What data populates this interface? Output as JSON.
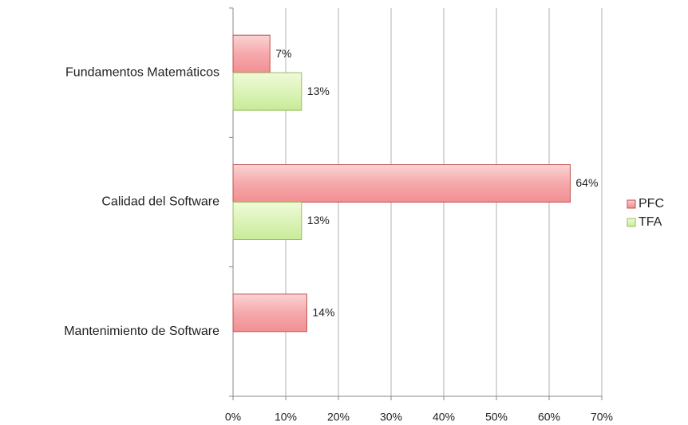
{
  "chart_data": {
    "type": "hbar",
    "categories": [
      "Fundamentos Matemáticos",
      "Calidad del Software",
      "Mantenimiento de Software"
    ],
    "series": [
      {
        "name": "PFC",
        "color": "#f2a3a6",
        "values": [
          7,
          64,
          14
        ],
        "value_labels": [
          "7%",
          "64%",
          "14%"
        ]
      },
      {
        "name": "TFA",
        "color": "#d8f0b2",
        "values": [
          13,
          13,
          null
        ],
        "value_labels": [
          "13%",
          "13%",
          null
        ]
      }
    ],
    "xlim": [
      0,
      70
    ],
    "xticks": [
      {
        "value": 0,
        "label": "0%"
      },
      {
        "value": 10,
        "label": "10%"
      },
      {
        "value": 20,
        "label": "20%"
      },
      {
        "value": 30,
        "label": "30%"
      },
      {
        "value": 40,
        "label": "40%"
      },
      {
        "value": 50,
        "label": "50%"
      },
      {
        "value": 60,
        "label": "60%"
      },
      {
        "value": 70,
        "label": "70%"
      }
    ],
    "grid": true,
    "legend": "right"
  }
}
